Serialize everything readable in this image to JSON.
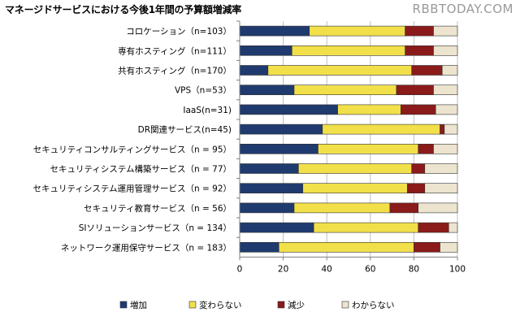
{
  "header": {
    "title": "マネージドサービスにおける今後1年間の予算額増減率",
    "watermark": "RBBTODAY.COM"
  },
  "chart_data": {
    "type": "bar",
    "orientation": "horizontal",
    "stacked": true,
    "title": "マネージドサービスにおける今後1年間の予算額増減率",
    "xlabel": "",
    "ylabel": "",
    "xlim": [
      0,
      100
    ],
    "x_ticks": [
      0,
      20,
      40,
      60,
      80,
      100
    ],
    "grid": true,
    "legend_position": "bottom",
    "categories": [
      "コロケーション（n=103）",
      "専有ホスティング（n=111）",
      "共有ホスティング（n=170）",
      "VPS（n=53）",
      "IaaS(n=31)",
      "DR関連サービス(n=45)",
      "セキュリティコンサルティングサービス（n = 95）",
      "セキュリティシステム構築サービス（n = 77）",
      "セキュリティシステム運用管理サービス（n = 92）",
      "セキュリティ教育サービス（n = 56）",
      "SIソリューションサービス（n = 134）",
      "ネットワーク運用保守サービス（n = 183）"
    ],
    "series": [
      {
        "name": "増加",
        "color": "#1f3a6e",
        "values": [
          32,
          24,
          13,
          25,
          45,
          38,
          36,
          27,
          29,
          25,
          34,
          18
        ]
      },
      {
        "name": "変わらない",
        "color": "#f2e04a",
        "values": [
          44,
          52,
          66,
          47,
          29,
          54,
          46,
          52,
          48,
          44,
          48,
          62
        ]
      },
      {
        "name": "減少",
        "color": "#8b1a1a",
        "values": [
          13,
          13,
          14,
          17,
          16,
          2,
          7,
          6,
          8,
          13,
          14,
          12
        ]
      },
      {
        "name": "わからない",
        "color": "#ece4cf",
        "values": [
          11,
          11,
          7,
          11,
          10,
          6,
          11,
          15,
          15,
          18,
          4,
          8
        ]
      }
    ]
  }
}
